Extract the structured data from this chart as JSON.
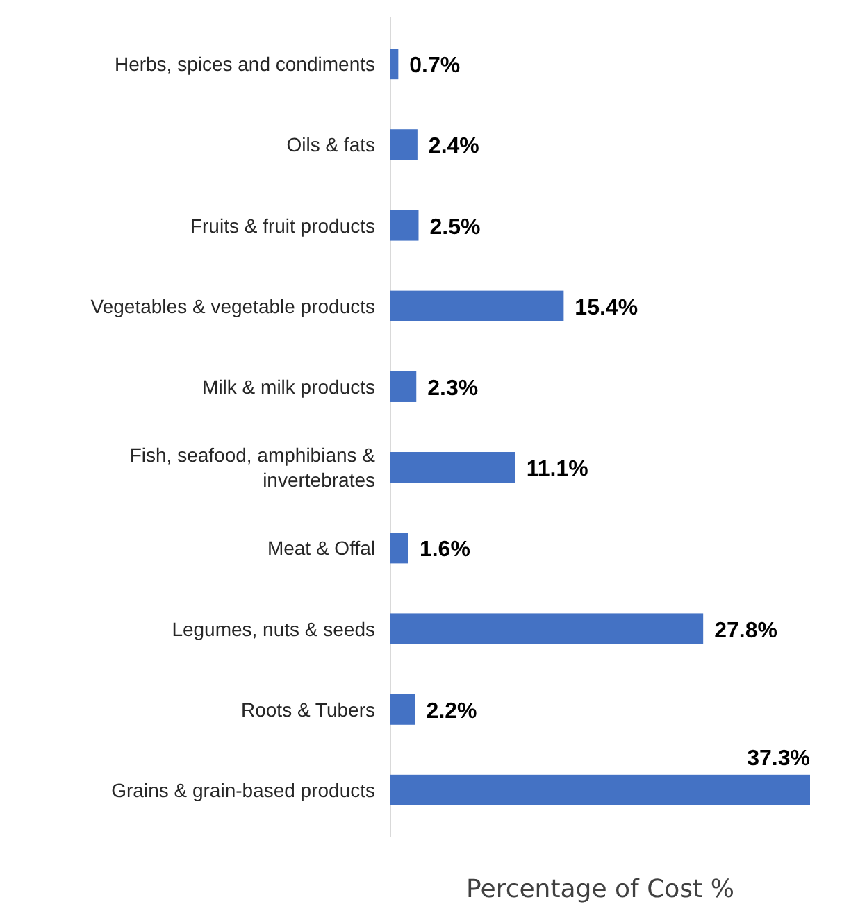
{
  "chart_data": {
    "type": "bar",
    "orientation": "horizontal",
    "xlabel": "Percentage of Cost %",
    "categories": [
      "Herbs, spices and condiments",
      "Oils & fats",
      "Fruits & fruit products",
      "Vegetables & vegetable products",
      "Milk & milk products",
      "Fish, seafood, amphibians & invertebrates",
      "Meat & Offal",
      "Legumes, nuts & seeds",
      "Roots & Tubers",
      "Grains & grain-based products"
    ],
    "values": [
      0.7,
      2.4,
      2.5,
      15.4,
      2.3,
      11.1,
      1.6,
      27.8,
      2.2,
      37.3
    ],
    "value_labels": [
      "0.7%",
      "2.4%",
      "2.5%",
      "15.4%",
      "2.3%",
      "11.1%",
      "1.6%",
      "27.8%",
      "2.2%",
      "37.3%"
    ],
    "color": "#4472c4"
  }
}
